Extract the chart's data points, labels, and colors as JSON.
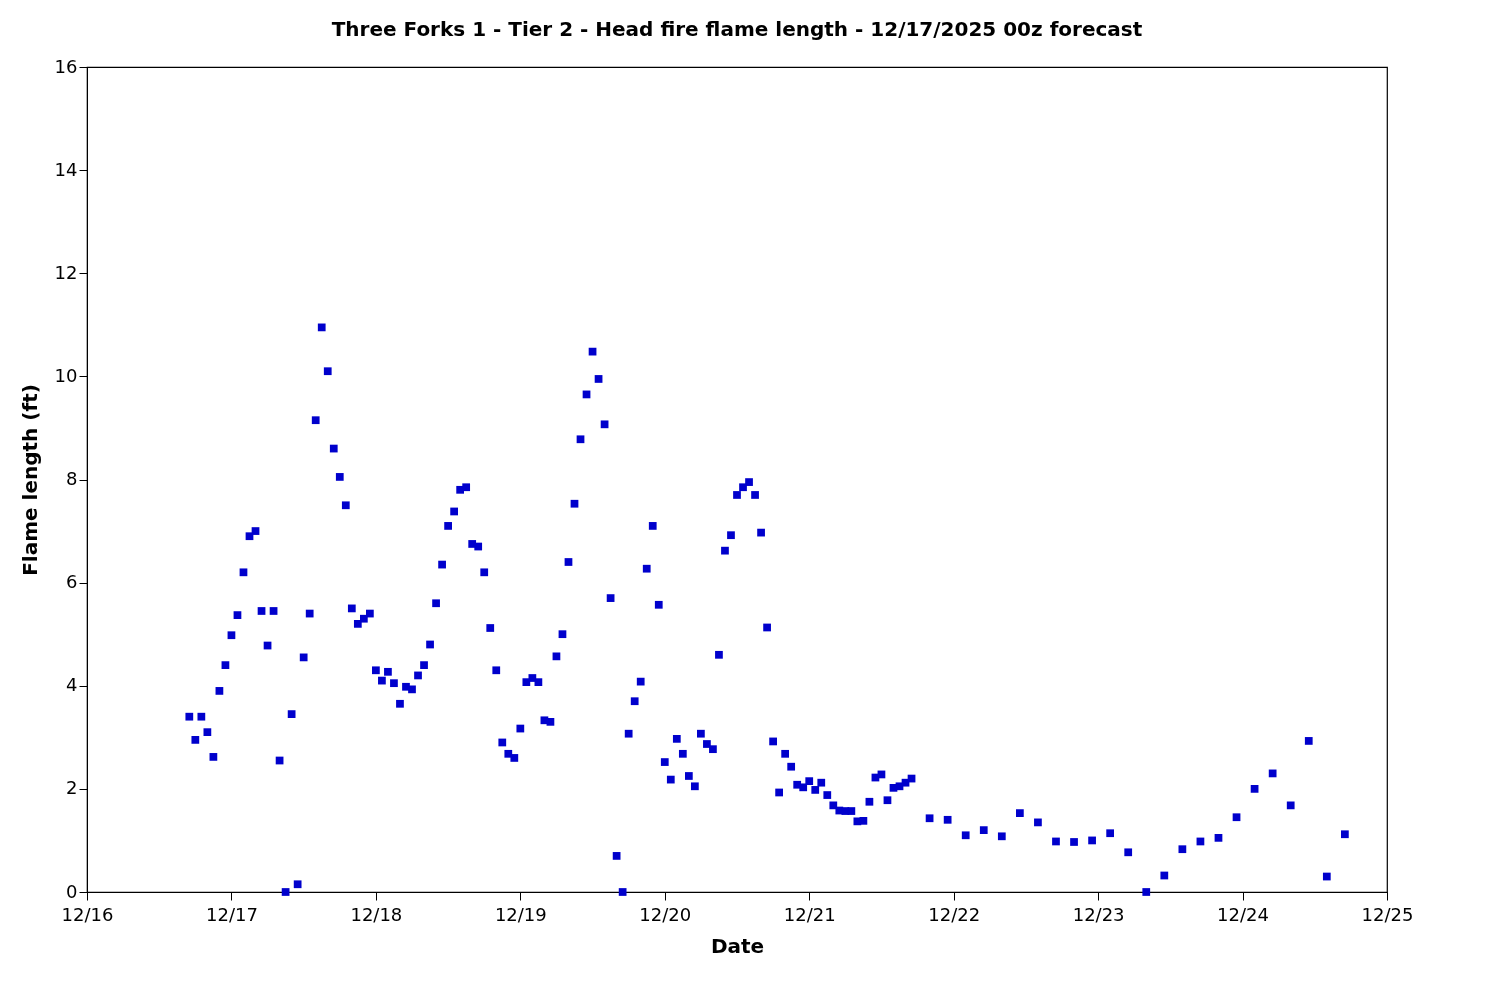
{
  "chart_data": {
    "type": "scatter",
    "title": "Three Forks 1 - Tier 2 - Head fire flame length - 12/17/2025 00z forecast",
    "xlabel": "Date",
    "ylabel": "Flame length (ft)",
    "x": [
      "2025-12-16T17:00",
      "2025-12-16T18:00",
      "2025-12-16T19:00",
      "2025-12-16T20:00",
      "2025-12-16T21:00",
      "2025-12-16T22:00",
      "2025-12-16T23:00",
      "2025-12-17T00:00",
      "2025-12-17T01:00",
      "2025-12-17T02:00",
      "2025-12-17T03:00",
      "2025-12-17T04:00",
      "2025-12-17T05:00",
      "2025-12-17T06:00",
      "2025-12-17T07:00",
      "2025-12-17T08:00",
      "2025-12-17T09:00",
      "2025-12-17T10:00",
      "2025-12-17T11:00",
      "2025-12-17T12:00",
      "2025-12-17T13:00",
      "2025-12-17T14:00",
      "2025-12-17T15:00",
      "2025-12-17T16:00",
      "2025-12-17T17:00",
      "2025-12-17T18:00",
      "2025-12-17T19:00",
      "2025-12-17T20:00",
      "2025-12-17T21:00",
      "2025-12-17T22:00",
      "2025-12-17T23:00",
      "2025-12-18T00:00",
      "2025-12-18T01:00",
      "2025-12-18T02:00",
      "2025-12-18T03:00",
      "2025-12-18T04:00",
      "2025-12-18T05:00",
      "2025-12-18T06:00",
      "2025-12-18T07:00",
      "2025-12-18T08:00",
      "2025-12-18T09:00",
      "2025-12-18T10:00",
      "2025-12-18T11:00",
      "2025-12-18T12:00",
      "2025-12-18T13:00",
      "2025-12-18T14:00",
      "2025-12-18T15:00",
      "2025-12-18T16:00",
      "2025-12-18T17:00",
      "2025-12-18T18:00",
      "2025-12-18T19:00",
      "2025-12-18T20:00",
      "2025-12-18T21:00",
      "2025-12-18T22:00",
      "2025-12-18T23:00",
      "2025-12-19T00:00",
      "2025-12-19T01:00",
      "2025-12-19T02:00",
      "2025-12-19T03:00",
      "2025-12-19T04:00",
      "2025-12-19T05:00",
      "2025-12-19T06:00",
      "2025-12-19T07:00",
      "2025-12-19T08:00",
      "2025-12-19T09:00",
      "2025-12-19T10:00",
      "2025-12-19T11:00",
      "2025-12-19T12:00",
      "2025-12-19T13:00",
      "2025-12-19T14:00",
      "2025-12-19T15:00",
      "2025-12-19T16:00",
      "2025-12-19T17:00",
      "2025-12-19T18:00",
      "2025-12-19T19:00",
      "2025-12-19T20:00",
      "2025-12-19T21:00",
      "2025-12-19T22:00",
      "2025-12-19T23:00",
      "2025-12-20T00:00",
      "2025-12-20T01:00",
      "2025-12-20T02:00",
      "2025-12-20T03:00",
      "2025-12-20T04:00",
      "2025-12-20T05:00",
      "2025-12-20T06:00",
      "2025-12-20T07:00",
      "2025-12-20T08:00",
      "2025-12-20T09:00",
      "2025-12-20T10:00",
      "2025-12-20T11:00",
      "2025-12-20T12:00",
      "2025-12-20T13:00",
      "2025-12-20T14:00",
      "2025-12-20T15:00",
      "2025-12-20T16:00",
      "2025-12-20T17:00",
      "2025-12-20T18:00",
      "2025-12-20T19:00",
      "2025-12-20T20:00",
      "2025-12-20T21:00",
      "2025-12-20T22:00",
      "2025-12-20T23:00",
      "2025-12-21T00:00",
      "2025-12-21T01:00",
      "2025-12-21T02:00",
      "2025-12-21T03:00",
      "2025-12-21T04:00",
      "2025-12-21T05:00",
      "2025-12-21T06:00",
      "2025-12-21T07:00",
      "2025-12-21T08:00",
      "2025-12-21T09:00",
      "2025-12-21T10:00",
      "2025-12-21T11:00",
      "2025-12-21T12:00",
      "2025-12-21T13:00",
      "2025-12-21T14:00",
      "2025-12-21T15:00",
      "2025-12-21T16:00",
      "2025-12-21T17:00",
      "2025-12-21T20:00",
      "2025-12-21T23:00",
      "2025-12-22T02:00",
      "2025-12-22T05:00",
      "2025-12-22T08:00",
      "2025-12-22T11:00",
      "2025-12-22T14:00",
      "2025-12-22T17:00",
      "2025-12-22T20:00",
      "2025-12-22T23:00",
      "2025-12-23T02:00",
      "2025-12-23T05:00",
      "2025-12-23T08:00",
      "2025-12-23T11:00",
      "2025-12-23T14:00",
      "2025-12-23T17:00",
      "2025-12-23T20:00",
      "2025-12-23T23:00",
      "2025-12-24T02:00",
      "2025-12-24T05:00",
      "2025-12-24T08:00",
      "2025-12-24T11:00",
      "2025-12-24T14:00",
      "2025-12-24T17:00"
    ],
    "series": [
      {
        "color": "#0000cc",
        "values": [
          3.4,
          2.95,
          3.4,
          3.1,
          2.62,
          3.9,
          4.4,
          4.98,
          5.37,
          6.2,
          6.9,
          7.0,
          5.45,
          4.78,
          5.45,
          2.55,
          0.0,
          3.45,
          0.15,
          4.55,
          5.4,
          9.15,
          10.95,
          10.1,
          8.6,
          8.05,
          7.5,
          5.5,
          5.2,
          5.3,
          5.4,
          4.3,
          4.1,
          4.27,
          4.05,
          3.65,
          3.98,
          3.93,
          4.2,
          4.4,
          4.8,
          5.6,
          6.35,
          7.1,
          7.38,
          7.8,
          7.85,
          6.75,
          6.7,
          6.2,
          5.12,
          4.3,
          2.9,
          2.68,
          2.6,
          3.17,
          4.07,
          4.15,
          4.07,
          3.33,
          3.3,
          4.57,
          5.0,
          6.4,
          7.53,
          8.78,
          9.65,
          10.48,
          9.95,
          9.07,
          5.7,
          0.7,
          0.0,
          3.07,
          3.7,
          4.08,
          6.27,
          7.1,
          5.57,
          2.52,
          2.18,
          2.97,
          2.68,
          2.25,
          2.05,
          3.07,
          2.87,
          2.77,
          4.6,
          6.62,
          6.92,
          7.7,
          7.85,
          7.95,
          7.7,
          6.97,
          5.13,
          2.92,
          1.93,
          2.68,
          2.43,
          2.08,
          2.03,
          2.15,
          1.98,
          2.12,
          1.88,
          1.68,
          1.58,
          1.57,
          1.57,
          1.37,
          1.38,
          1.75,
          2.22,
          2.28,
          1.78,
          2.02,
          2.05,
          2.12,
          2.2,
          1.43,
          1.4,
          1.1,
          1.2,
          1.08,
          1.53,
          1.35,
          0.98,
          0.97,
          1.0,
          1.14,
          0.77,
          0.0,
          0.32,
          0.83,
          0.98,
          1.05,
          1.45,
          2.0,
          2.3,
          1.68,
          2.93,
          0.3,
          1.12
        ]
      }
    ],
    "xlim": [
      "2025-12-16",
      "2025-12-25"
    ],
    "xticks": [
      {
        "value": "2025-12-16",
        "label": "12/16"
      },
      {
        "value": "2025-12-17",
        "label": "12/17"
      },
      {
        "value": "2025-12-18",
        "label": "12/18"
      },
      {
        "value": "2025-12-19",
        "label": "12/19"
      },
      {
        "value": "2025-12-20",
        "label": "12/20"
      },
      {
        "value": "2025-12-21",
        "label": "12/21"
      },
      {
        "value": "2025-12-22",
        "label": "12/22"
      },
      {
        "value": "2025-12-23",
        "label": "12/23"
      },
      {
        "value": "2025-12-24",
        "label": "12/24"
      },
      {
        "value": "2025-12-25",
        "label": "12/25"
      }
    ],
    "ylim": [
      0,
      16
    ],
    "yticks": [
      0,
      2,
      4,
      6,
      8,
      10,
      12,
      14,
      16
    ],
    "marker": "square",
    "grid": false
  }
}
